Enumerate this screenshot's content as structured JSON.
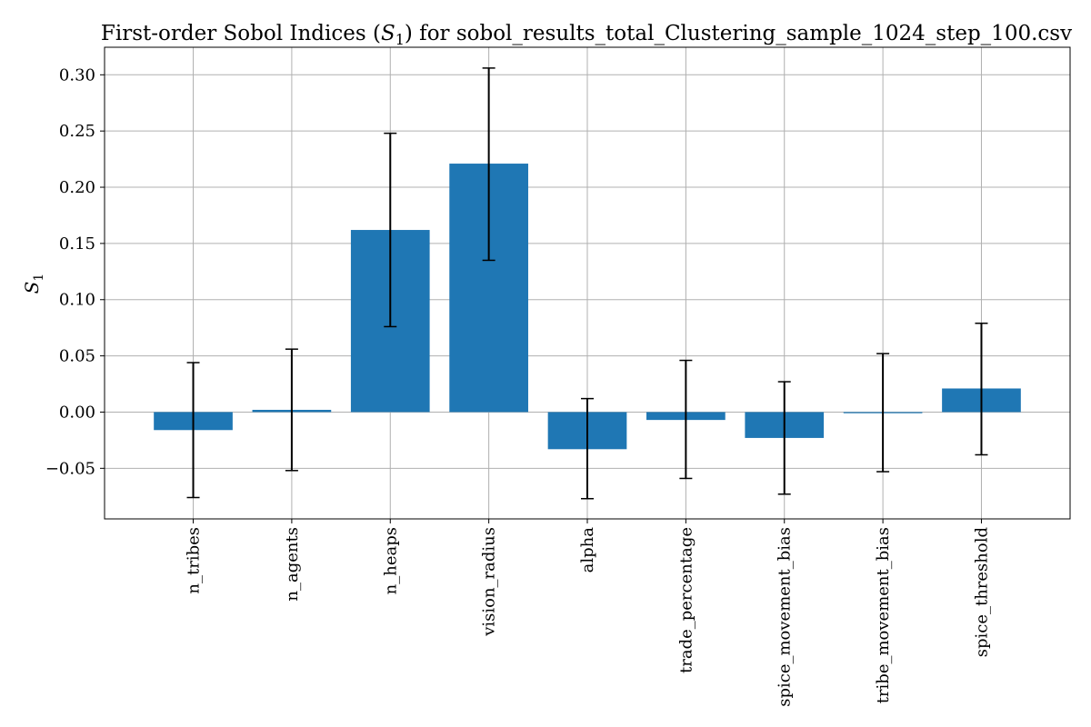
{
  "chart_data": {
    "type": "bar",
    "title": "First-order Sobol Indices (S1) for sobol_results_total_Clustering_sample_1024_step_100.csv",
    "xlabel": "",
    "ylabel": "S1",
    "categories": [
      "n_tribes",
      "n_agents",
      "n_heaps",
      "vision_radius",
      "alpha",
      "trade_percentage",
      "spice_movement_bias",
      "tribe_movement_bias",
      "spice_threshold"
    ],
    "values": [
      -0.016,
      0.002,
      0.162,
      0.221,
      -0.033,
      -0.007,
      -0.023,
      -0.001,
      0.021
    ],
    "error_low": [
      -0.076,
      -0.052,
      0.076,
      0.135,
      -0.077,
      -0.059,
      -0.073,
      -0.053,
      -0.038
    ],
    "error_high": [
      0.044,
      0.056,
      0.248,
      0.306,
      0.012,
      0.046,
      0.027,
      0.052,
      0.079
    ],
    "ylim": [
      -0.095,
      0.3245
    ],
    "yticks": [
      -0.05,
      0.0,
      0.05,
      0.1,
      0.15,
      0.2,
      0.25,
      0.3
    ],
    "ytick_labels": [
      "−0.05",
      "0.00",
      "0.05",
      "0.10",
      "0.15",
      "0.20",
      "0.25",
      "0.30"
    ],
    "grid": true,
    "bar_color": "#1f77b4",
    "error_color": "#000000",
    "grid_color": "#b0b0b0"
  }
}
